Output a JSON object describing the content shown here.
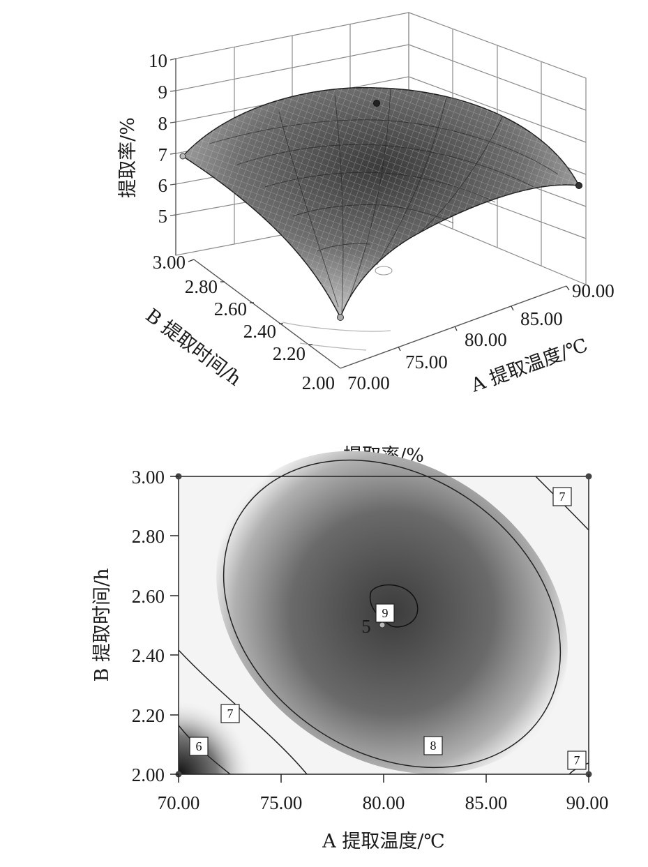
{
  "surface_chart": {
    "type": "surface",
    "z_label": "提取率/%",
    "x_label": "A 提取温度/℃",
    "y_label": "B 提取时间/h",
    "z_ticks": [
      "5",
      "6",
      "7",
      "8",
      "9",
      "10"
    ],
    "x_ticks": [
      "70.00",
      "75.00",
      "80.00",
      "85.00",
      "90.00"
    ],
    "y_ticks": [
      "2.00",
      "2.20",
      "2.40",
      "2.60",
      "2.80",
      "3.00"
    ]
  },
  "contour_chart": {
    "type": "contour",
    "title": "提取率/%",
    "x_label": "A 提取温度/℃",
    "y_label": "B 提取时间/h",
    "x_ticks": [
      "70.00",
      "75.00",
      "80.00",
      "85.00",
      "90.00"
    ],
    "y_ticks": [
      "2.00",
      "2.20",
      "2.40",
      "2.60",
      "2.80",
      "3.00"
    ],
    "contour_labels": [
      "7",
      "9",
      "5",
      "7",
      "6",
      "8",
      "7"
    ]
  },
  "chart_data": [
    {
      "type": "surface",
      "xlabel": "A 提取温度/℃",
      "ylabel": "B 提取时间/h",
      "zlabel": "提取率/%",
      "xlim": [
        70,
        90
      ],
      "ylim": [
        2.0,
        3.0
      ],
      "zlim": [
        5,
        10
      ],
      "points": [
        {
          "x": 70,
          "y": 3.0,
          "z": 7.0
        },
        {
          "x": 90,
          "y": 2.0,
          "z": 6.0
        },
        {
          "x": 70,
          "y": 2.0,
          "z": 4.9
        },
        {
          "x": 80,
          "y": 2.5,
          "z": 9.1
        }
      ]
    },
    {
      "type": "contour",
      "title": "提取率/%",
      "xlabel": "A 提取温度/℃",
      "ylabel": "B 提取时间/h",
      "xlim": [
        70,
        90
      ],
      "ylim": [
        2.0,
        3.0
      ],
      "levels": [
        6,
        7,
        8,
        9
      ],
      "center_point": {
        "x": 80,
        "y": 2.5
      },
      "design_points": [
        [
          70,
          2.0
        ],
        [
          90,
          2.0
        ],
        [
          70,
          3.0
        ],
        [
          90,
          3.0
        ],
        [
          80,
          2.5
        ]
      ]
    }
  ]
}
